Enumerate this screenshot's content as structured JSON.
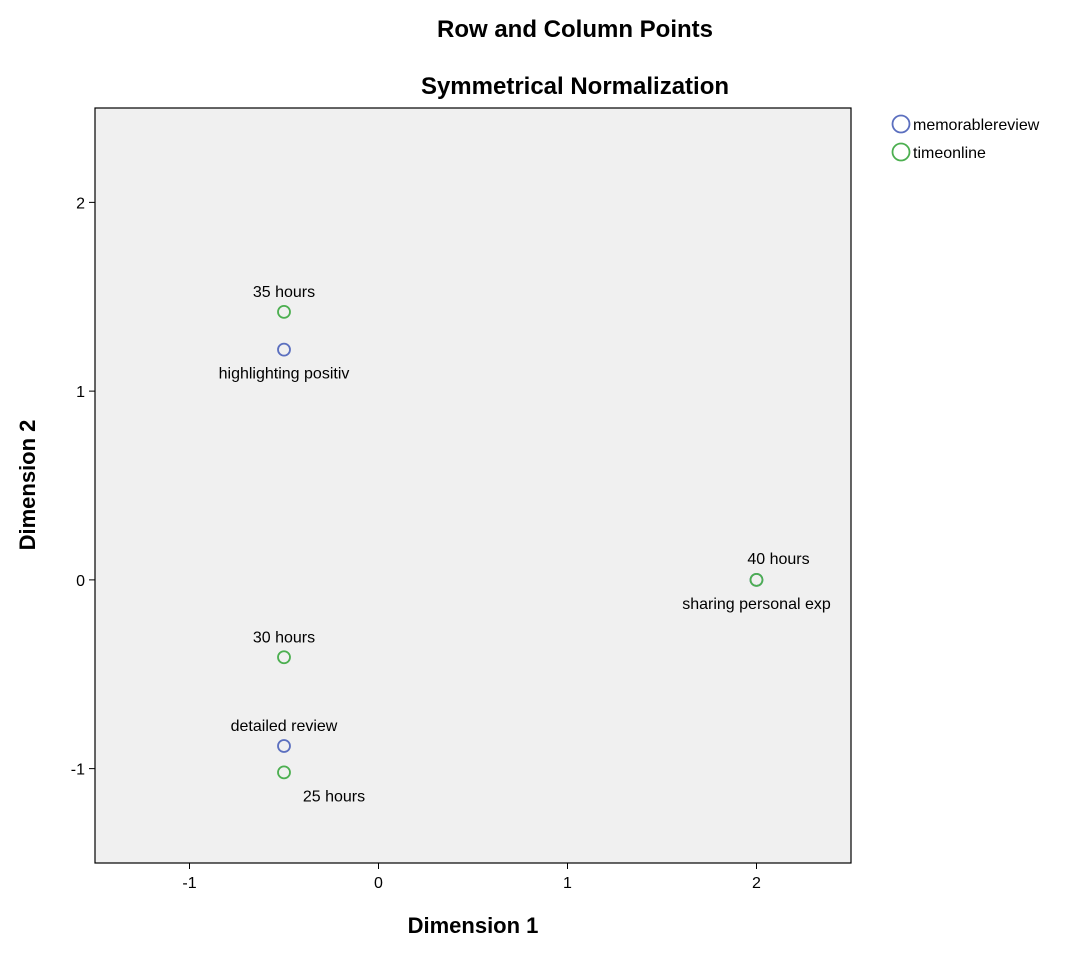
{
  "chart_data": {
    "type": "scatter",
    "title": "Row and Column Points",
    "subtitle": "Symmetrical Normalization",
    "xlabel": "Dimension 1",
    "ylabel": "Dimension 2",
    "xlim": [
      -1.5,
      2.5
    ],
    "ylim": [
      -1.5,
      2.5
    ],
    "xticks": [
      -1,
      0,
      1,
      2
    ],
    "yticks": [
      -1,
      0,
      1,
      2
    ],
    "grid": false,
    "legend_position": "top-right outside",
    "series": [
      {
        "name": "memorablereview",
        "color": "#5b6fbf",
        "points": [
          {
            "label": "highlighting positiv",
            "x": -0.5,
            "y": 1.22,
            "label_pos": "below"
          },
          {
            "label": "sharing personal exp",
            "x": 2.0,
            "y": 0.0,
            "label_pos": "below"
          },
          {
            "label": "detailed review",
            "x": -0.5,
            "y": -0.88,
            "label_pos": "above"
          }
        ]
      },
      {
        "name": "timeonline",
        "color": "#4caf50",
        "points": [
          {
            "label": "35 hours",
            "x": -0.5,
            "y": 1.42,
            "label_pos": "above"
          },
          {
            "label": "40 hours",
            "x": 2.0,
            "y": 0.0,
            "label_pos": "above-right"
          },
          {
            "label": "30 hours",
            "x": -0.5,
            "y": -0.41,
            "label_pos": "above"
          },
          {
            "label": "25 hours",
            "x": -0.5,
            "y": -1.02,
            "label_pos": "below-right"
          }
        ]
      }
    ]
  }
}
